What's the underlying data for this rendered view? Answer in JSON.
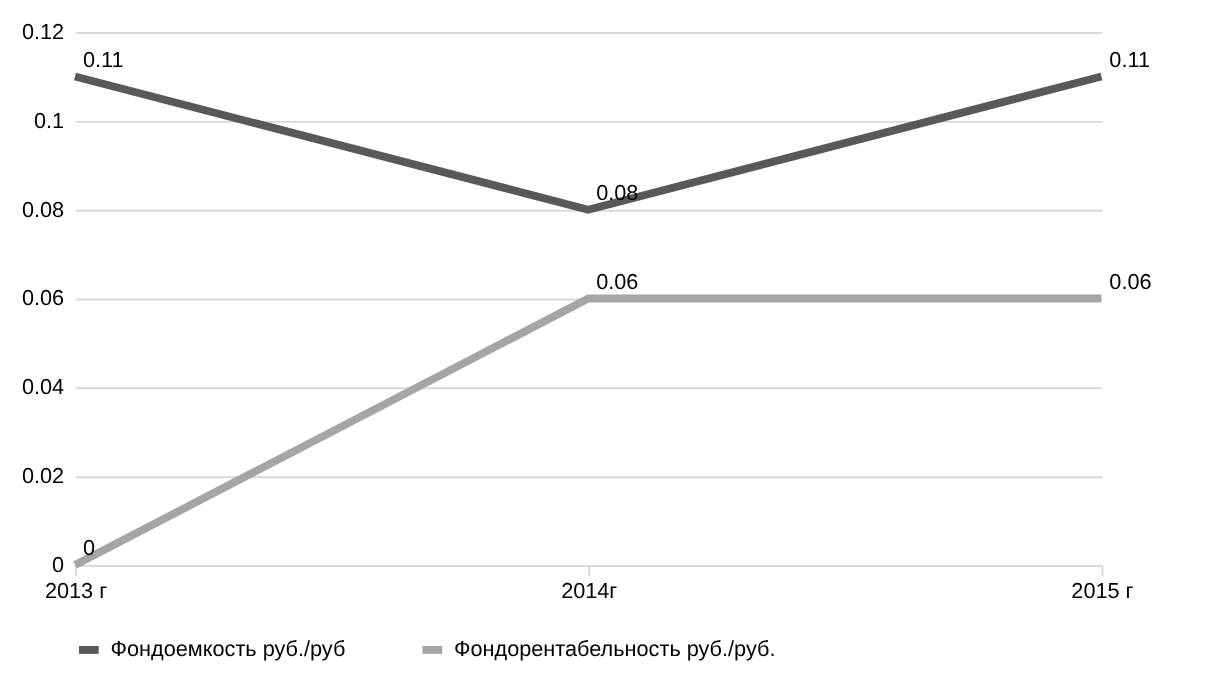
{
  "chart_data": {
    "type": "line",
    "categories": [
      "2013 г",
      "2014г",
      "2015 г"
    ],
    "series": [
      {
        "name": "Фондоемкость руб./руб",
        "color": "#595959",
        "values": [
          0.11,
          0.08,
          0.11
        ]
      },
      {
        "name": "Фондорентабельность руб./руб.",
        "color": "#a5a5a5",
        "values": [
          0,
          0.06,
          0.06
        ]
      }
    ],
    "ylim": [
      0,
      0.12
    ],
    "yticks": [
      0,
      0.02,
      0.04,
      0.06,
      0.08,
      0.1,
      0.12
    ],
    "grid": "y",
    "legend": "bottom",
    "data_labels": true,
    "marker": "none",
    "line_style": "solid"
  }
}
